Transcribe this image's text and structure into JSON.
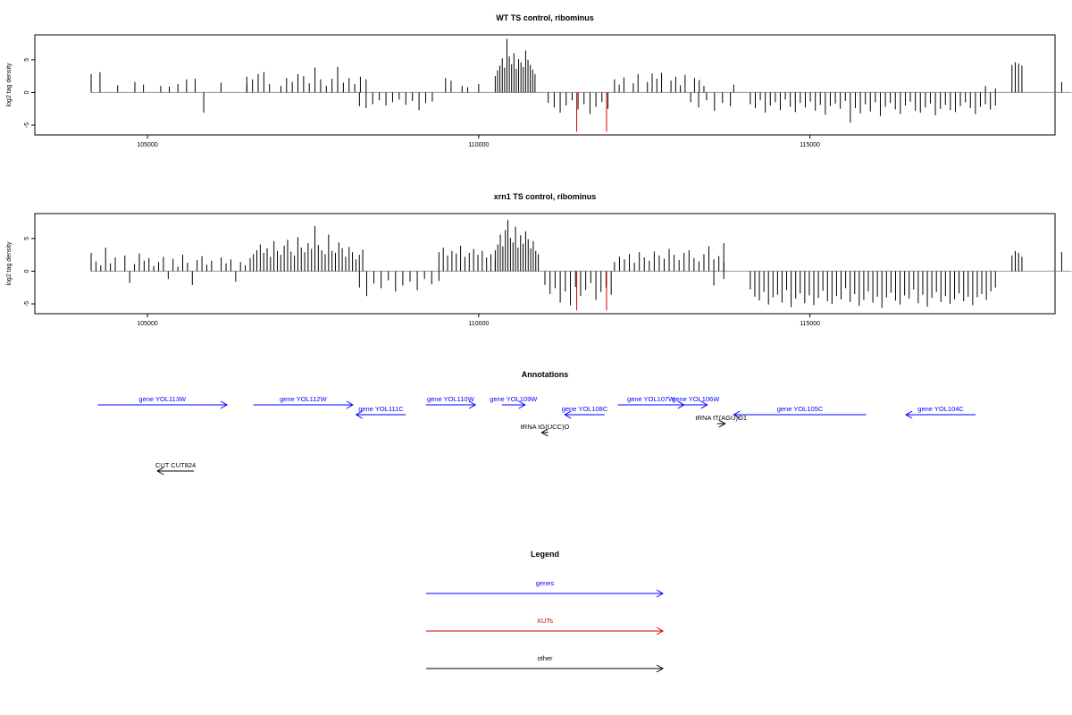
{
  "chart_data": [
    {
      "type": "bar",
      "title": "WT TS control, ribominus",
      "xlabel": "",
      "ylabel": "log2 tag density",
      "xlim": [
        103300,
        118700
      ],
      "ylim": [
        -6.5,
        8.8
      ],
      "xticks": [
        105000,
        110000,
        115000
      ],
      "xtick_labels": [
        "105000",
        "110000",
        "115000"
      ],
      "yticks": [
        -5,
        0,
        5
      ],
      "ytick_labels": [
        "-5",
        "0",
        "5"
      ],
      "colors": {
        "default": "#000000",
        "highlight": "#cc0000",
        "baseline": "#9a9a9a"
      },
      "highlight_positions": [
        111480,
        111930
      ],
      "highlight_values": [
        -6,
        -6
      ],
      "x_range": [
        104150,
        118950
      ],
      "series": [
        {
          "from": 104150,
          "to": 104350,
          "values": [
            2.8,
            0,
            3.1,
            0
          ]
        },
        {
          "from": 104550,
          "to": 106500,
          "values": [
            1.1,
            0,
            1.6,
            1.2,
            0,
            1.0,
            0.9,
            1.3,
            2.0,
            2.1,
            -3.1,
            0,
            1.5,
            0,
            0,
            2.4
          ]
        },
        {
          "from": 106500,
          "to": 108300,
          "values": [
            1.2,
            2.0,
            2.8,
            3.1,
            1.3,
            0,
            1.0,
            2.2,
            1.6,
            2.8,
            2.5,
            1.4,
            3.8,
            2.0,
            1.0,
            2.1,
            3.9,
            1.5,
            2.2,
            1.3,
            2.4,
            2.0
          ]
        },
        {
          "from": 108200,
          "to": 109300,
          "values": [
            -2.1,
            -2.4,
            -1.8,
            -1.2,
            -2.0,
            -1.5,
            -1.1,
            -1.9,
            -1.3,
            -2.7,
            -1.6,
            -1.4
          ]
        },
        {
          "from": 109500,
          "to": 110000,
          "values": [
            2.2,
            1.8,
            0,
            1.0,
            0.8,
            0,
            1.3
          ]
        },
        {
          "from": 110250,
          "to": 110850,
          "values": [
            2.5,
            3.4,
            4.1,
            5.2,
            3.8,
            8.2,
            5.5,
            4.3,
            6.0,
            3.6,
            5.1,
            4.6,
            3.9,
            6.4,
            5.0,
            4.2,
            3.5,
            2.8
          ]
        },
        {
          "from": 111050,
          "to": 111950,
          "values": [
            -1.6,
            -2.3,
            -3.1,
            -2.0,
            -1.2,
            -2.6,
            -1.8,
            -3.3,
            -2.2,
            -1.5,
            -2.5
          ]
        },
        {
          "from": 112050,
          "to": 113400,
          "values": [
            2.0,
            1.2,
            2.3,
            0,
            1.4,
            2.8,
            0,
            1.6,
            2.9,
            2.1,
            3.0,
            0,
            1.8,
            2.4,
            1.1,
            2.7,
            0,
            2.2,
            1.9,
            1.0
          ]
        },
        {
          "from": 113200,
          "to": 113800,
          "values": [
            -1.5,
            -2.3,
            -1.2,
            -2.8,
            -1.6,
            -2.1
          ]
        },
        {
          "from": 113850,
          "to": 113900,
          "values": [
            1.2
          ]
        },
        {
          "from": 114100,
          "to": 117800,
          "values": [
            -1.8,
            -2.4,
            -1.2,
            -3.1,
            -2.0,
            -1.5,
            -2.7,
            -1.1,
            -2.2,
            -3.0,
            -1.6,
            -2.3,
            -1.4,
            -2.8,
            -1.9,
            -3.4,
            -2.1,
            -1.7,
            -2.5,
            -1.3,
            -4.6,
            -2.4,
            -3.2,
            -1.8,
            -2.9,
            -1.5,
            -3.6,
            -2.2,
            -1.6,
            -2.6,
            -3.3,
            -2.0,
            -1.4,
            -2.8,
            -3.1,
            -2.3,
            -1.7,
            -3.5,
            -2.5,
            -1.9,
            -2.7,
            -3.0,
            -2.1,
            -1.5,
            -2.4,
            -3.3,
            -2.2,
            -1.8,
            -2.6,
            -2.0
          ]
        },
        {
          "from": 117650,
          "to": 117800,
          "values": [
            1.0,
            0.6
          ]
        },
        {
          "from": 118050,
          "to": 118200,
          "values": [
            4.2,
            4.6,
            4.4,
            4.1
          ]
        },
        {
          "from": 118700,
          "to": 118800,
          "values": [
            1.3,
            1.6
          ]
        }
      ]
    },
    {
      "type": "bar",
      "title": "xrn1 TS control, ribominus",
      "xlabel": "",
      "ylabel": "log2 tag density",
      "xlim": [
        103300,
        118700
      ],
      "ylim": [
        -6.5,
        8.8
      ],
      "xticks": [
        105000,
        110000,
        115000
      ],
      "xtick_labels": [
        "105000",
        "110000",
        "115000"
      ],
      "yticks": [
        -5,
        0,
        5
      ],
      "ytick_labels": [
        "-5",
        "0",
        "5"
      ],
      "colors": {
        "default": "#000000",
        "highlight": "#cc0000",
        "baseline": "#9a9a9a"
      },
      "highlight_positions": [
        111480,
        111930
      ],
      "highlight_values": [
        -6,
        -6
      ],
      "x_range": [
        104150,
        118950
      ],
      "series": [
        {
          "from": 104150,
          "to": 106550,
          "values": [
            2.8,
            1.5,
            0.9,
            3.6,
            1.2,
            2.1,
            0,
            2.4,
            -1.8,
            1.1,
            2.7,
            1.6,
            2.0,
            0.8,
            1.4,
            2.2,
            -1.2,
            1.9,
            0.7,
            2.5,
            1.3,
            -2.1,
            1.7,
            2.3,
            1.0,
            1.6,
            0,
            2.1,
            1.2,
            1.8,
            -1.6,
            1.4,
            0.9,
            2.0
          ]
        },
        {
          "from": 106600,
          "to": 108250,
          "values": [
            2.6,
            3.2,
            4.1,
            2.8,
            3.5,
            2.2,
            4.6,
            3.1,
            2.5,
            3.9,
            4.8,
            3.0,
            2.4,
            5.2,
            3.6,
            2.9,
            4.3,
            3.4,
            6.9,
            4.0,
            3.2,
            2.6,
            5.6,
            3.1,
            2.8,
            4.4,
            3.5,
            2.2,
            3.7,
            2.9,
            1.8,
            2.5,
            3.3
          ]
        },
        {
          "from": 108200,
          "to": 109400,
          "values": [
            -2.5,
            -3.8,
            -1.9,
            -2.6,
            -1.4,
            -3.1,
            -2.2,
            -1.6,
            -2.9,
            -1.2,
            -2.0,
            -1.5
          ]
        },
        {
          "from": 109400,
          "to": 110250,
          "values": [
            2.9,
            3.6,
            2.4,
            3.1,
            2.7,
            3.9,
            2.2,
            2.8,
            3.4,
            2.5,
            3.1,
            2.1,
            2.6,
            1.8
          ]
        },
        {
          "from": 110250,
          "to": 110900,
          "values": [
            3.2,
            4.1,
            5.6,
            3.8,
            6.3,
            7.8,
            5.1,
            4.4,
            6.8,
            3.6,
            5.5,
            4.2,
            6.1,
            4.9,
            3.5,
            4.6,
            3.1,
            2.6
          ]
        },
        {
          "from": 111000,
          "to": 112000,
          "values": [
            -2.1,
            -3.5,
            -2.6,
            -4.8,
            -3.1,
            -5.2,
            -2.4,
            -3.8,
            -2.9,
            -1.8,
            -4.4,
            -3.2,
            -2.5,
            -3.6
          ]
        },
        {
          "from": 112050,
          "to": 113700,
          "values": [
            1.4,
            2.2,
            1.8,
            2.6,
            1.3,
            2.9,
            2.1,
            1.6,
            3.0,
            2.4,
            1.9,
            3.4,
            2.5,
            1.7,
            2.8,
            3.2,
            2.0,
            1.5,
            2.6,
            3.8,
            1.8,
            2.3,
            1.4
          ]
        },
        {
          "from": 113550,
          "to": 113700,
          "values": [
            -2.2,
            -1.2
          ]
        },
        {
          "from": 113700,
          "to": 113750,
          "values": [
            4.3
          ]
        },
        {
          "from": 114100,
          "to": 117800,
          "values": [
            -2.8,
            -3.9,
            -4.5,
            -3.2,
            -5.1,
            -4.0,
            -3.6,
            -4.8,
            -2.9,
            -5.5,
            -4.2,
            -3.4,
            -4.9,
            -3.7,
            -5.2,
            -4.1,
            -3.0,
            -4.6,
            -5.0,
            -3.8,
            -4.3,
            -2.6,
            -4.7,
            -3.5,
            -5.3,
            -4.4,
            -3.1,
            -4.8,
            -3.9,
            -5.6,
            -4.0,
            -3.3,
            -4.5,
            -5.1,
            -3.7,
            -4.2,
            -2.8,
            -4.9,
            -3.6,
            -5.4,
            -4.1,
            -3.2,
            -4.7,
            -3.8,
            -5.0,
            -4.3,
            -3.4,
            -4.6,
            -3.9,
            -5.2,
            -4.0,
            -3.5,
            -4.4,
            -3.1,
            -2.5
          ]
        },
        {
          "from": 118050,
          "to": 118200,
          "values": [
            2.4,
            3.1,
            2.8,
            2.2
          ]
        },
        {
          "from": 118700,
          "to": 118800,
          "values": [
            2.6,
            2.9
          ]
        }
      ]
    }
  ],
  "annotations": {
    "title": "Annotations",
    "items": [
      {
        "label": "gene YOL113W",
        "color": "#0000ff",
        "from": 104250,
        "to": 106200,
        "direction": "right",
        "row": 0
      },
      {
        "label": "gene YOL112W",
        "color": "#0000ff",
        "from": 106600,
        "to": 108100,
        "direction": "right",
        "row": 0
      },
      {
        "label": "gene YOL111C",
        "color": "#0000ff",
        "from": 108150,
        "to": 108900,
        "direction": "left",
        "row": 1
      },
      {
        "label": "gene YOL110W",
        "color": "#0000ff",
        "from": 109200,
        "to": 109950,
        "direction": "right",
        "row": 0
      },
      {
        "label": "gene YOL109W",
        "color": "#0000ff",
        "from": 110350,
        "to": 110700,
        "direction": "right",
        "row": 0
      },
      {
        "label": "gene YOL108C",
        "color": "#0000ff",
        "from": 111300,
        "to": 111900,
        "direction": "left",
        "row": 1
      },
      {
        "label": "gene YOL107W",
        "color": "#0000ff",
        "from": 112100,
        "to": 113100,
        "direction": "right",
        "row": 0
      },
      {
        "label": "gene YOL106W",
        "color": "#0000ff",
        "from": 113100,
        "to": 113450,
        "direction": "right",
        "row": 0
      },
      {
        "label": "gene YOL105C",
        "color": "#0000ff",
        "from": 113850,
        "to": 115850,
        "direction": "left",
        "row": 1
      },
      {
        "label": "gene YOL104C",
        "color": "#0000ff",
        "from": 116450,
        "to": 117500,
        "direction": "left",
        "row": 1
      },
      {
        "label": "tRNA tG(UCC)O",
        "color": "#000000",
        "from": 110950,
        "to": 111050,
        "direction": "left",
        "row": 3
      },
      {
        "label": "tRNA tT(AGU)O1",
        "color": "#000000",
        "from": 113600,
        "to": 113720,
        "direction": "right",
        "row": 2
      },
      {
        "label": "CUT CUT824",
        "color": "#000000",
        "from": 105150,
        "to": 105700,
        "direction": "left",
        "row": 4
      }
    ]
  },
  "legend": {
    "title": "Legend",
    "items": [
      {
        "label": "genes",
        "color": "#0000ff"
      },
      {
        "label": "XUTs",
        "color": "#cc0000"
      },
      {
        "label": "other",
        "color": "#000000"
      }
    ]
  }
}
